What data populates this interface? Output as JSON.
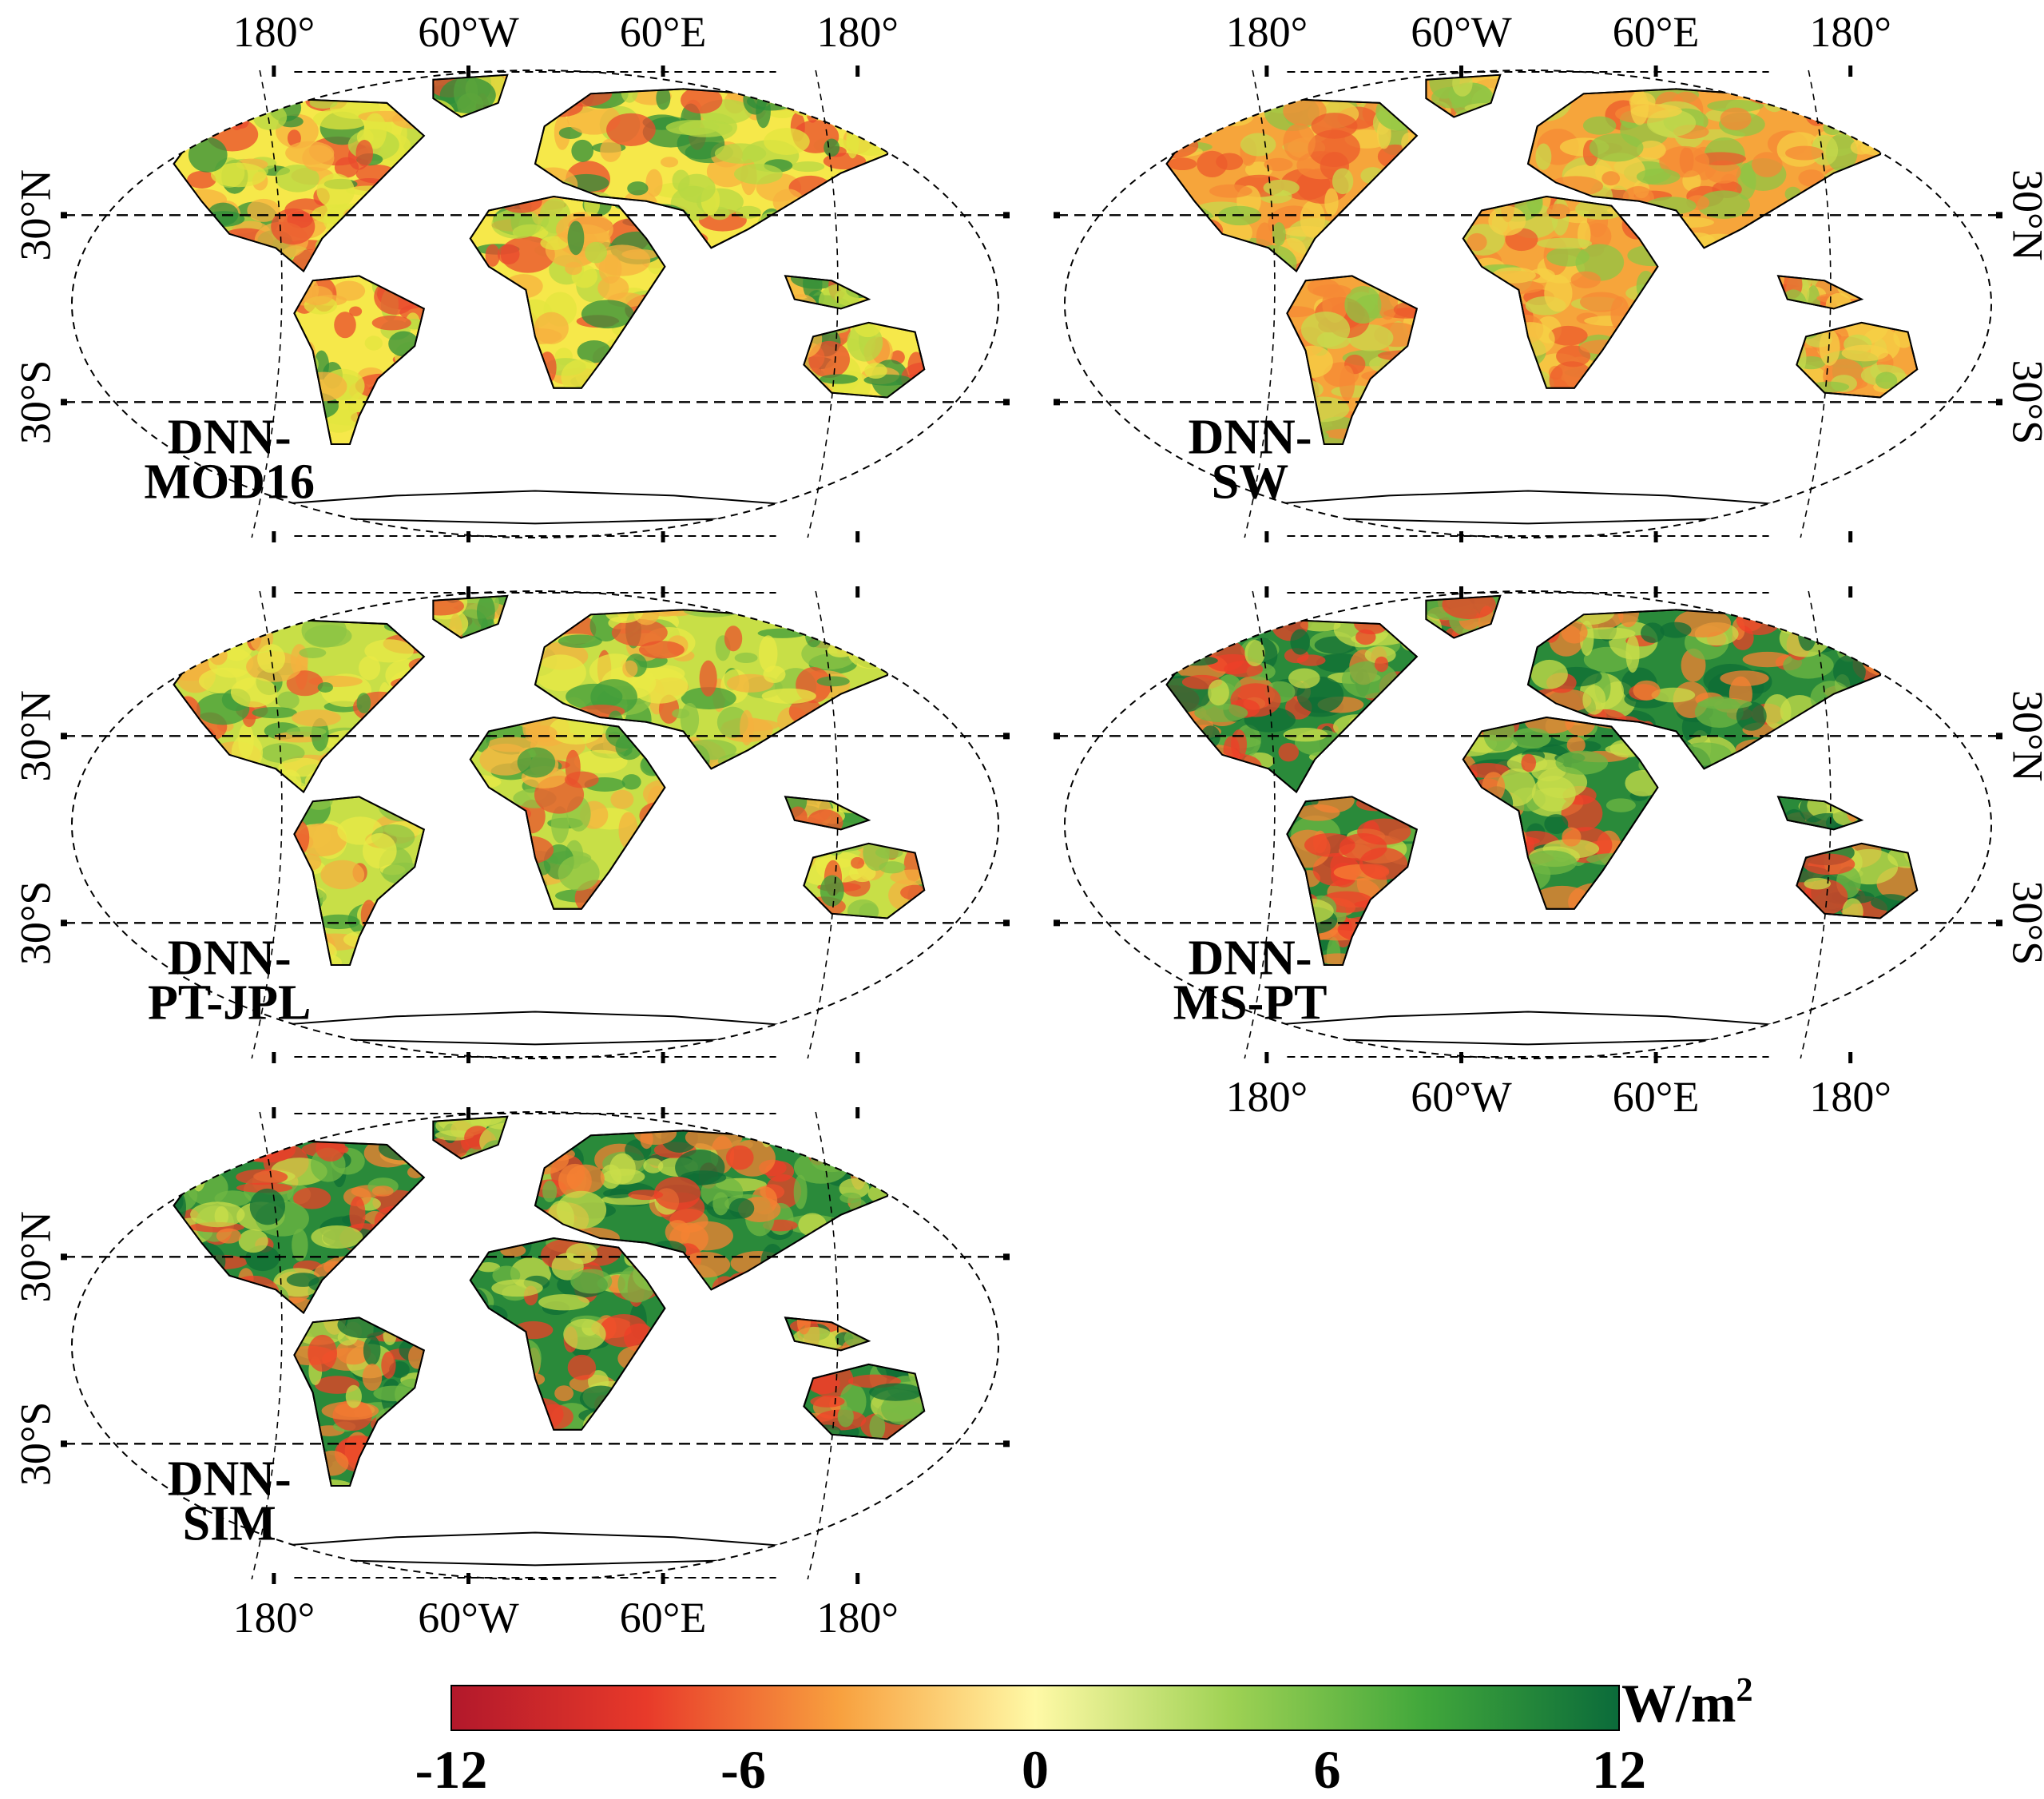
{
  "lon_labels": [
    "180°",
    "60°W",
    "60°E",
    "180°"
  ],
  "lat_labels": [
    "30°N",
    "30°S"
  ],
  "maps": [
    {
      "id": "mod16",
      "label_lines": [
        "DNN-",
        "MOD16"
      ],
      "lon_labels_top": true,
      "lon_labels_bottom": false,
      "lat_side": "left",
      "palette": "mixed"
    },
    {
      "id": "sw",
      "label_lines": [
        "DNN-",
        "SW"
      ],
      "lon_labels_top": true,
      "lon_labels_bottom": false,
      "lat_side": "right",
      "palette": "orange"
    },
    {
      "id": "ptjpl",
      "label_lines": [
        "DNN-",
        "PT-JPL"
      ],
      "lon_labels_top": false,
      "lon_labels_bottom": false,
      "lat_side": "left",
      "palette": "green-yellow"
    },
    {
      "id": "mspt",
      "label_lines": [
        "DNN-",
        "MS-PT"
      ],
      "lon_labels_top": false,
      "lon_labels_bottom": true,
      "lat_side": "right",
      "palette": "green-red"
    },
    {
      "id": "sim",
      "label_lines": [
        "DNN-",
        "SIM"
      ],
      "lon_labels_top": false,
      "lon_labels_bottom": true,
      "lat_side": "left",
      "palette": "green-red"
    }
  ],
  "colorbar": {
    "unit": "W/m",
    "unit_sup": "2",
    "ticks": [
      "-12",
      "-6",
      "0",
      "6",
      "12"
    ],
    "tick_values": [
      -12,
      -6,
      0,
      6,
      12
    ],
    "range": [
      -12,
      12
    ],
    "colors": [
      "#b2182b",
      "#e83a2a",
      "#f8a13f",
      "#fff9a6",
      "#9fd254",
      "#41a73b",
      "#0b6b3a"
    ]
  }
}
